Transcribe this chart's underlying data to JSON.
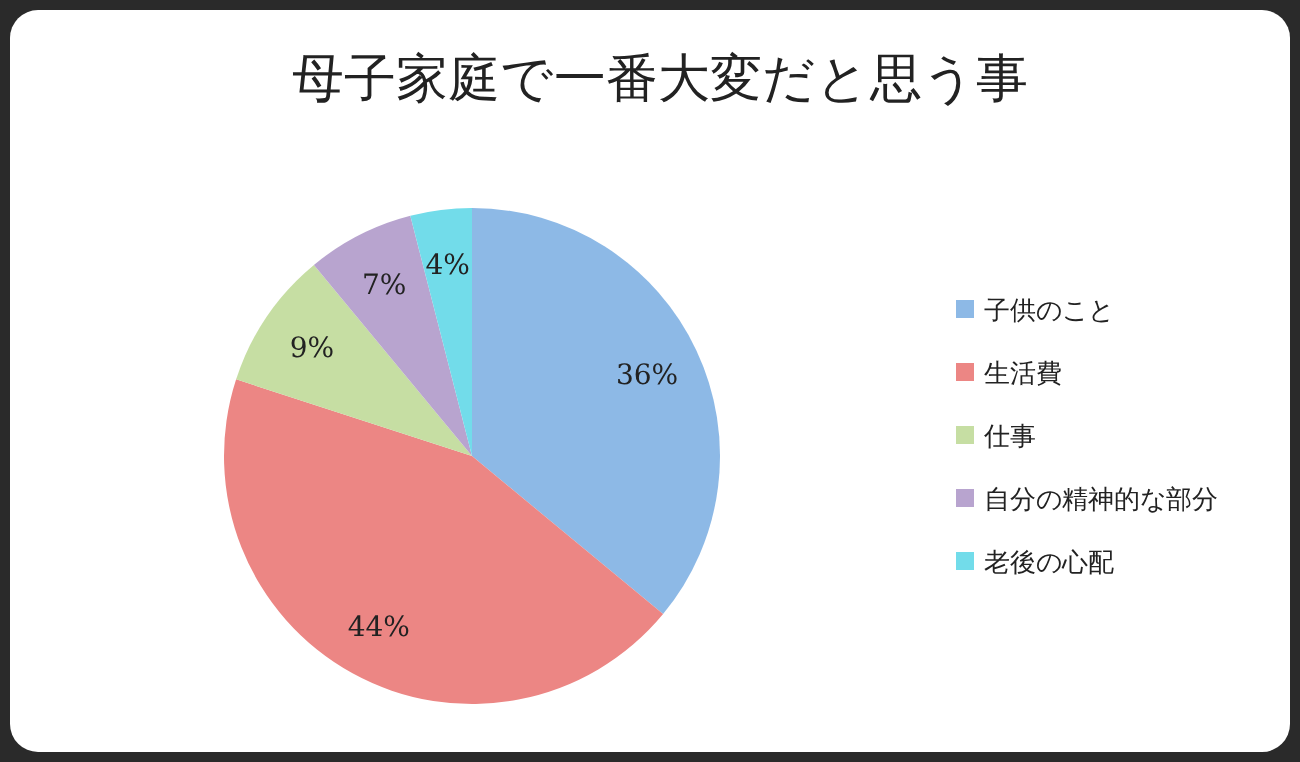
{
  "chart_data": {
    "type": "pie",
    "title": "母子家庭で一番大変だと思う事",
    "categories": [
      "子供のこと",
      "生活費",
      "仕事",
      "自分の精神的な部分",
      "老後の心配"
    ],
    "values": [
      36,
      44,
      9,
      7,
      4
    ],
    "colors": [
      "#8db9e6",
      "#ec8684",
      "#c6dea3",
      "#b8a4cf",
      "#72dcea"
    ],
    "value_labels": [
      "36%",
      "44%",
      "9%",
      "7%",
      "4%"
    ],
    "legend": "right"
  }
}
